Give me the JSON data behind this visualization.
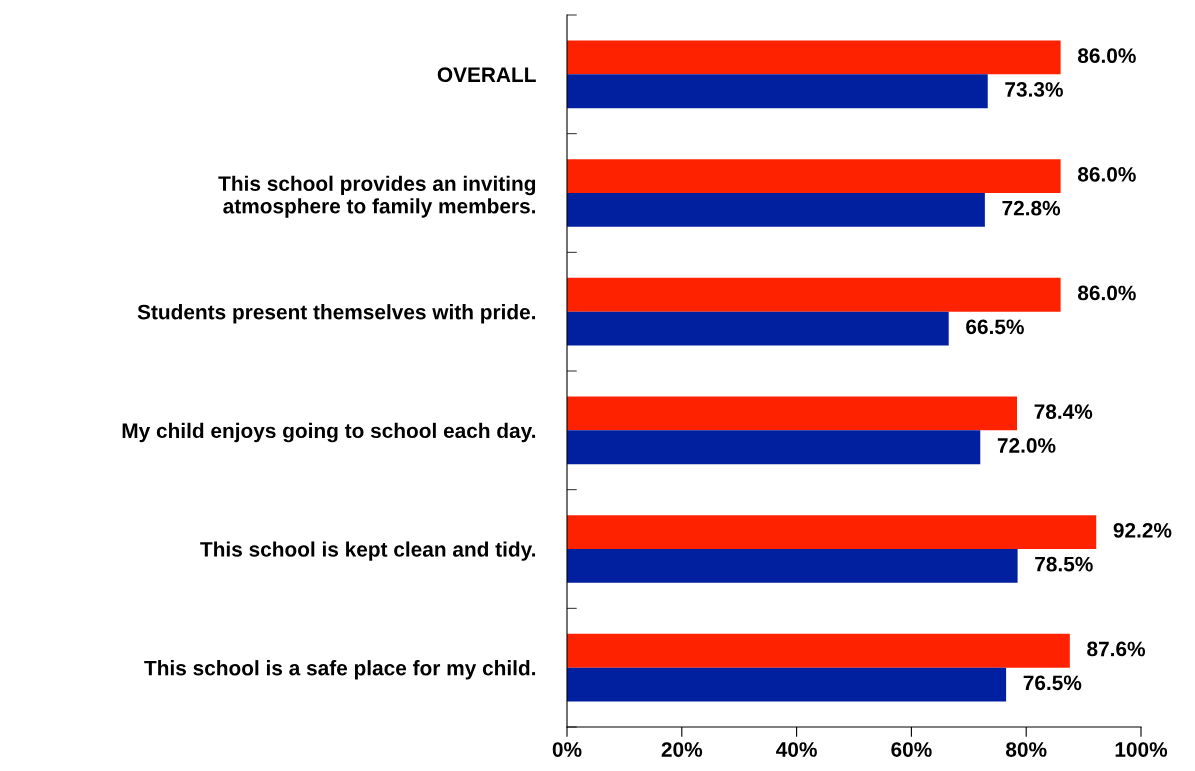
{
  "chart_data": {
    "type": "bar",
    "orientation": "horizontal",
    "categories": [
      "OVERALL",
      "This school provides an inviting\natmosphere to family members.",
      "Students present themselves with pride.",
      "My child enjoys going to school each day.",
      "This school is kept clean and tidy.",
      "This school is a safe place for my child."
    ],
    "series": [
      {
        "color": "#ff2200",
        "values": [
          86.0,
          86.0,
          86.0,
          78.4,
          92.2,
          87.6
        ],
        "value_labels": [
          "86.0%",
          "86.0%",
          "86.0%",
          "78.4%",
          "92.2%",
          "87.6%"
        ]
      },
      {
        "color": "#0020a0",
        "values": [
          73.3,
          72.8,
          66.5,
          72.0,
          78.5,
          76.5
        ],
        "value_labels": [
          "73.3%",
          "72.8%",
          "66.5%",
          "72.0%",
          "78.5%",
          "76.5%"
        ]
      }
    ],
    "xlim": [
      0,
      100
    ],
    "xticks": [
      {
        "value": 0,
        "label": "0%"
      },
      {
        "value": 20,
        "label": "20%"
      },
      {
        "value": 40,
        "label": "40%"
      },
      {
        "value": 60,
        "label": "60%"
      },
      {
        "value": 80,
        "label": "80%"
      },
      {
        "value": 100,
        "label": "100%"
      }
    ],
    "grid": false
  }
}
